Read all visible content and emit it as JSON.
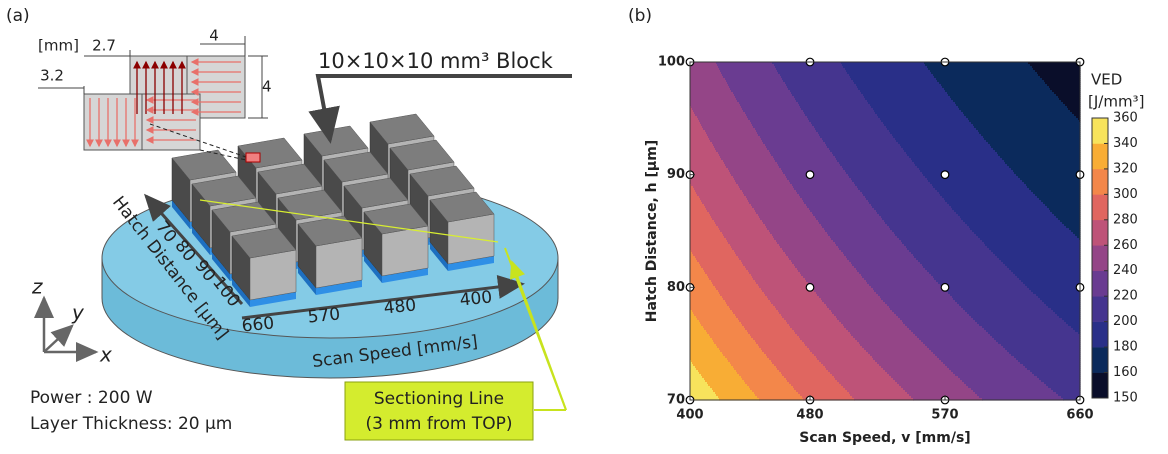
{
  "panel_a": {
    "panel_label": "(a)",
    "inset": {
      "unit": "[mm]",
      "dim_offset_y": "2.7",
      "dim_width": "4",
      "dim_height": "4",
      "dim_offset_x": "3.2"
    },
    "block_label": "10×10×10 mm³ Block",
    "hatch_axis": {
      "title": "Hatch Distance [µm]",
      "labels": [
        70,
        80,
        90,
        100
      ]
    },
    "scan_axis": {
      "title": "Scan Speed [mm/s]",
      "labels": [
        660,
        570,
        480,
        400
      ]
    },
    "axes": {
      "z": "z",
      "y": "y",
      "x": "x"
    },
    "conditions": [
      "Power : 200 W",
      "Layer Thickness: 20 µm"
    ],
    "section_label": [
      "Sectioning Line",
      "(3 mm from TOP)"
    ]
  },
  "chart_data": {
    "type": "contour",
    "panel_label": "(b)",
    "x_label": "Scan Speed, v [mm/s]",
    "y_label": "Hatch Distance, h [µm]",
    "x": [
      400,
      480,
      570,
      660
    ],
    "y": [
      70,
      80,
      90,
      100
    ],
    "z": [
      [
        357.1,
        297.6,
        250.6,
        216.5
      ],
      [
        312.5,
        260.4,
        219.3,
        189.4
      ],
      [
        277.8,
        231.5,
        194.9,
        168.4
      ],
      [
        250.0,
        208.3,
        175.4,
        151.5
      ]
    ],
    "xlim": [
      400,
      660
    ],
    "ylim": [
      70,
      100
    ],
    "xticks": [
      400,
      480,
      570,
      660
    ],
    "yticks": [
      70,
      80,
      90,
      100
    ],
    "colorbar": {
      "title": "VED",
      "unit": "[J/mm³]",
      "levels": [
        150,
        160,
        180,
        200,
        220,
        240,
        260,
        280,
        300,
        320,
        340,
        360
      ],
      "colors": [
        "#0a0e2a",
        "#0b2a5c",
        "#292f88",
        "#45358f",
        "#6a3c91",
        "#944587",
        "#be5378",
        "#e06660",
        "#f3874a",
        "#f8ad35",
        "#f7e35c"
      ]
    }
  }
}
